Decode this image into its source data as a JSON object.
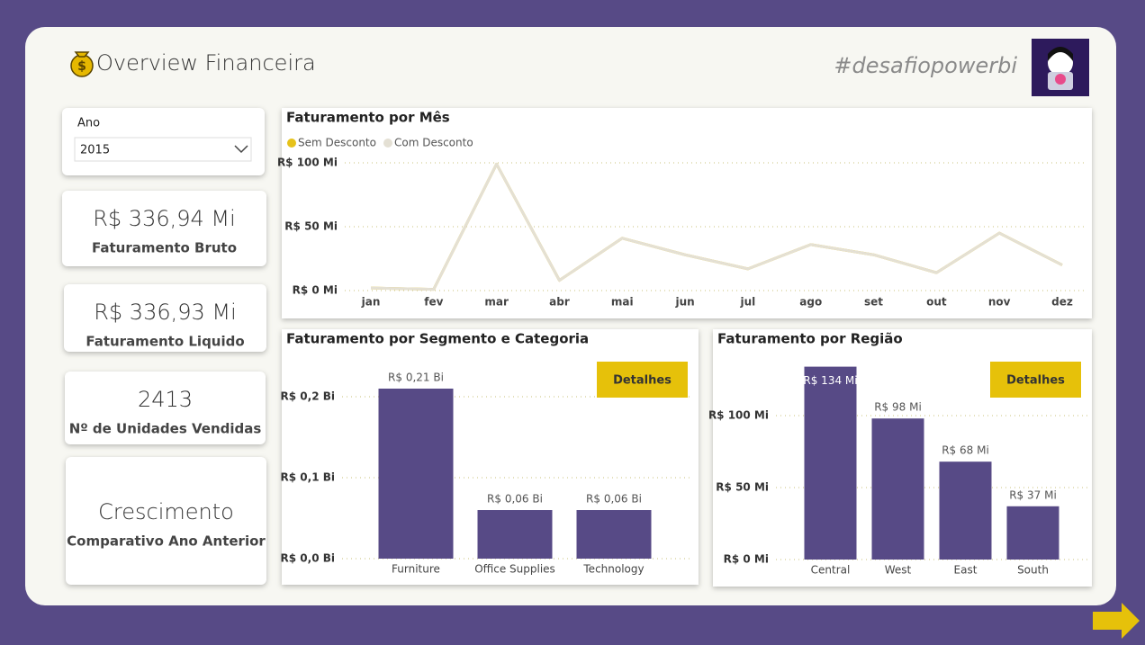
{
  "header": {
    "title": "Overview Financeira",
    "hashtag": "#desafiopowerbi"
  },
  "slicer": {
    "label": "Ano",
    "value": "2015"
  },
  "cards": [
    {
      "value": "R$ 336,94 Mi",
      "label": "Faturamento Bruto"
    },
    {
      "value": "R$ 336,93 Mi",
      "label": "Faturamento Liquido"
    },
    {
      "value": "2413",
      "label": "Nº de Unidades Vendidas"
    },
    {
      "value": "Crescimento",
      "label": "Comparativo Ano Anterior"
    }
  ],
  "chart_data": [
    {
      "type": "line",
      "title": "Faturamento por Mês",
      "categories": [
        "jan",
        "fev",
        "mar",
        "abr",
        "mai",
        "jun",
        "jul",
        "ago",
        "set",
        "out",
        "nov",
        "dez"
      ],
      "series": [
        {
          "name": "Sem Desconto",
          "color": "#e6c21a",
          "values": [
            2,
            1,
            99,
            8,
            41,
            28,
            17,
            36,
            28,
            14,
            45,
            20
          ]
        },
        {
          "name": "Com Desconto",
          "color": "#e4e0d4",
          "values": [
            2,
            1,
            99,
            8,
            41,
            28,
            17,
            36,
            28,
            14,
            45,
            20
          ]
        }
      ],
      "ylim": [
        0,
        100
      ],
      "yticks": [
        {
          "value": 0,
          "label": "R$ 0 Mi"
        },
        {
          "value": 50,
          "label": "R$ 50 Mi"
        },
        {
          "value": 100,
          "label": "R$ 100 Mi"
        }
      ],
      "grid": true
    },
    {
      "type": "bar",
      "title": "Faturamento por Segmento e Categoria",
      "button": "Detalhes",
      "categories": [
        "Furniture",
        "Office Supplies",
        "Technology"
      ],
      "values": [
        0.21,
        0.06,
        0.06
      ],
      "value_labels": [
        "R$ 0,21 Bi",
        "R$ 0,06 Bi",
        "R$ 0,06 Bi"
      ],
      "color": "#574a86",
      "ylim": [
        0,
        0.245
      ],
      "yticks": [
        {
          "value": 0,
          "label": "R$ 0,0 Bi"
        },
        {
          "value": 0.1,
          "label": "R$ 0,1 Bi"
        },
        {
          "value": 0.2,
          "label": "R$ 0,2 Bi"
        }
      ],
      "grid": true
    },
    {
      "type": "bar",
      "title": "Faturamento por Região",
      "button": "Detalhes",
      "categories": [
        "Central",
        "West",
        "East",
        "South"
      ],
      "values": [
        134,
        98,
        68,
        37
      ],
      "value_labels": [
        "R$ 134 Mi",
        "R$ 98 Mi",
        "R$ 68 Mi",
        "R$ 37 Mi"
      ],
      "color": "#574a86",
      "ylim": [
        0,
        136
      ],
      "yticks": [
        {
          "value": 0,
          "label": "R$ 0 Mi"
        },
        {
          "value": 50,
          "label": "R$ 50 Mi"
        },
        {
          "value": 100,
          "label": "R$ 100 Mi"
        }
      ],
      "grid": true
    }
  ]
}
